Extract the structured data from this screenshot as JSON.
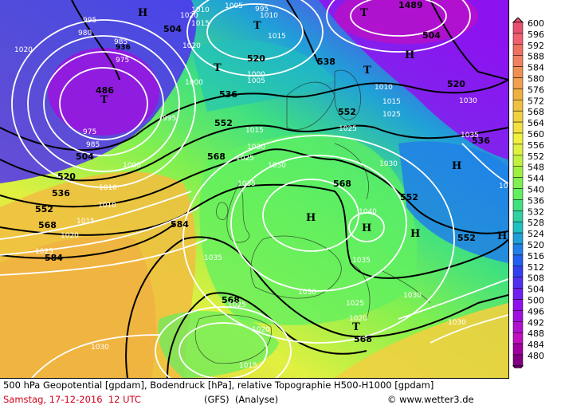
{
  "caption": {
    "line1": "500 hPa Geopotential [gpdam], Bodendruck [hPa], relative Topographie H500-H1000 [gpdam]",
    "date": "Samstag, 17-12-2016  12 UTC",
    "model": "(GFS)  (Analyse)",
    "copyright": "© www.wetter3.de"
  },
  "colors": {
    "accent_red": "#d0001a"
  },
  "scale": {
    "values": [
      "600",
      "596",
      "592",
      "588",
      "584",
      "580",
      "576",
      "572",
      "568",
      "564",
      "560",
      "556",
      "552",
      "548",
      "544",
      "540",
      "536",
      "532",
      "528",
      "524",
      "520",
      "516",
      "512",
      "508",
      "504",
      "500",
      "496",
      "492",
      "488",
      "484",
      "480"
    ],
    "colors": [
      "#e85070",
      "#f06070",
      "#f07060",
      "#f08060",
      "#f09050",
      "#f0a050",
      "#f0b040",
      "#f0c040",
      "#f0d040",
      "#f0e040",
      "#f0f040",
      "#e0f040",
      "#c0f040",
      "#a0f040",
      "#80f050",
      "#60f060",
      "#40e080",
      "#30d0a0",
      "#20c0c0",
      "#20a0d8",
      "#2080e8",
      "#2060f0",
      "#3040f0",
      "#5030f0",
      "#7020f0",
      "#9010f0",
      "#a010e0",
      "#b010d0",
      "#c010c0",
      "#a000a0",
      "#800080"
    ]
  },
  "geopotential_labels": [
    {
      "text": "504"
    },
    {
      "text": "936"
    },
    {
      "text": "520"
    },
    {
      "text": "536"
    },
    {
      "text": "1489"
    },
    {
      "text": "504"
    },
    {
      "text": "520"
    },
    {
      "text": "538"
    },
    {
      "text": "536"
    },
    {
      "text": "552"
    },
    {
      "text": "520"
    },
    {
      "text": "552"
    },
    {
      "text": "536"
    },
    {
      "text": "504"
    },
    {
      "text": "568"
    },
    {
      "text": "520"
    },
    {
      "text": "568"
    },
    {
      "text": "536"
    },
    {
      "text": "552"
    },
    {
      "text": "552"
    },
    {
      "text": "552"
    },
    {
      "text": "568"
    },
    {
      "text": "584"
    },
    {
      "text": "584"
    },
    {
      "text": "568"
    },
    {
      "text": "568"
    },
    {
      "text": "486"
    }
  ],
  "pressure_labels": [
    {
      "text": "995"
    },
    {
      "text": "1010"
    },
    {
      "text": "1005"
    },
    {
      "text": "995"
    },
    {
      "text": "1015"
    },
    {
      "text": "980"
    },
    {
      "text": "985"
    },
    {
      "text": "1015"
    },
    {
      "text": "975"
    },
    {
      "text": "1020"
    },
    {
      "text": "1000"
    },
    {
      "text": "1005"
    },
    {
      "text": "1000"
    },
    {
      "text": "1010"
    },
    {
      "text": "1015"
    },
    {
      "text": "1030"
    },
    {
      "text": "975"
    },
    {
      "text": "985"
    },
    {
      "text": "1020"
    },
    {
      "text": "1025"
    },
    {
      "text": "1035"
    },
    {
      "text": "995"
    },
    {
      "text": "1015"
    },
    {
      "text": "1010"
    },
    {
      "text": "1025"
    },
    {
      "text": "1030"
    },
    {
      "text": "1000"
    },
    {
      "text": "1050"
    },
    {
      "text": "1030"
    },
    {
      "text": "1035"
    },
    {
      "text": "1025"
    },
    {
      "text": "1040"
    },
    {
      "text": "1010"
    },
    {
      "text": "1015"
    },
    {
      "text": "1020"
    },
    {
      "text": "1025"
    },
    {
      "text": "1035"
    },
    {
      "text": "1035"
    },
    {
      "text": "1030"
    },
    {
      "text": "1030"
    },
    {
      "text": "1025"
    },
    {
      "text": "1020"
    },
    {
      "text": "1025"
    },
    {
      "text": "1020"
    },
    {
      "text": "1030"
    },
    {
      "text": "1015"
    },
    {
      "text": "1020"
    },
    {
      "text": "1030"
    },
    {
      "text": "1035"
    },
    {
      "text": "1010"
    }
  ],
  "centers": [
    {
      "text": "H"
    },
    {
      "text": "T"
    },
    {
      "text": "T"
    },
    {
      "text": "T"
    },
    {
      "text": "H"
    },
    {
      "text": "T"
    },
    {
      "text": "T"
    },
    {
      "text": "H"
    },
    {
      "text": "H"
    },
    {
      "text": "H"
    },
    {
      "text": "H"
    },
    {
      "text": "H"
    },
    {
      "text": "T"
    },
    {
      "text": "H"
    }
  ]
}
